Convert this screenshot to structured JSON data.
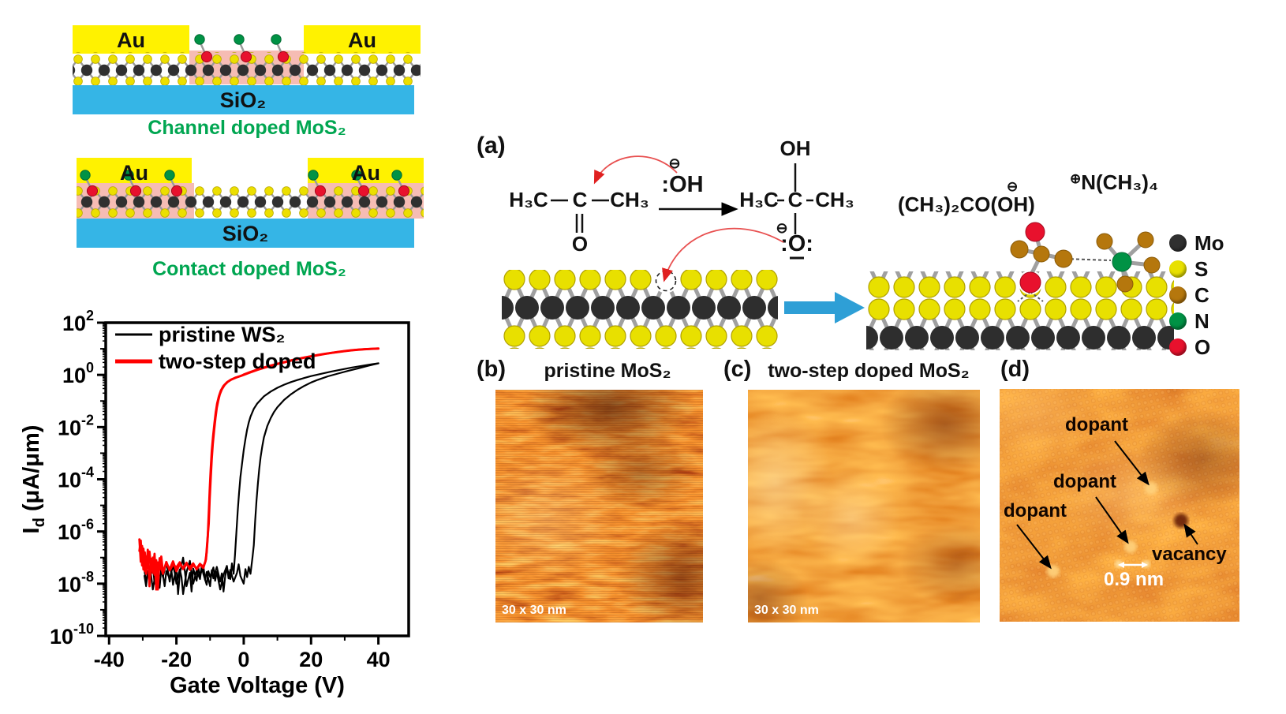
{
  "colors": {
    "au": "#fff200",
    "sio2": "#35b5e6",
    "doped_region": "#f6bcb4",
    "caption_green": "#00a651",
    "mo": "#303030",
    "s": "#e8e000",
    "c": "#b5770d",
    "n": "#009245",
    "o": "#e8112d",
    "arrow_blue": "#2e9fd6",
    "pristine_black": "#000000",
    "doped_red": "#ff0000"
  },
  "schematics": {
    "channel": {
      "electrode_label": "Au",
      "substrate_label": "SiO₂",
      "caption": "Channel doped MoS₂"
    },
    "contact": {
      "electrode_label": "Au",
      "substrate_label": "SiO₂",
      "caption": "Contact doped MoS₂"
    }
  },
  "chart_data": {
    "type": "line",
    "title": "",
    "xlabel": "Gate Voltage (V)",
    "ylabel": "I_d (μA/μm)",
    "ylabel_parts": {
      "pre": "I",
      "sub": "d",
      "post": " (μA/μm)"
    },
    "x_range": [
      -41,
      49
    ],
    "x_ticks": [
      -40,
      -20,
      0,
      20,
      40
    ],
    "x_minor_ticks": [
      -30,
      -10,
      10,
      30
    ],
    "y_scale": "log",
    "y_range_exp": [
      -10,
      2
    ],
    "y_tick_exps": [
      2,
      0,
      -2,
      -4,
      -6,
      -8,
      -10
    ],
    "grid": false,
    "legend_position": "top-left",
    "legend": [
      {
        "label": "pristine WS₂",
        "color": "#000000",
        "line_width": 3
      },
      {
        "label": "two-step doped",
        "color": "#ff0000",
        "line_width": 5
      }
    ],
    "series": [
      {
        "name": "pristine WS₂ sweep 1",
        "color": "#000000",
        "width": 2.2,
        "points": [
          [
            -29.5,
            2e-08
          ],
          [
            -29,
            8e-09
          ],
          [
            -28.5,
            3e-08
          ],
          [
            -28,
            1.4e-08
          ],
          [
            -27,
            5.5e-08
          ],
          [
            -26.5,
            1e-08
          ],
          [
            -26,
            3.2e-08
          ],
          [
            -25,
            7e-09
          ],
          [
            -24.5,
            4e-08
          ],
          [
            -24,
            1.8e-08
          ],
          [
            -23,
            6.5e-08
          ],
          [
            -22,
            1.2e-08
          ],
          [
            -21.5,
            3.4e-08
          ],
          [
            -21,
            9e-09
          ],
          [
            -20,
            4.5e-08
          ],
          [
            -19.5,
            4e-09
          ],
          [
            -19,
            2.4e-08
          ],
          [
            -18,
            1e-07
          ],
          [
            -17.5,
            3e-08
          ],
          [
            -17,
            8e-09
          ],
          [
            -16,
            2.6e-08
          ],
          [
            -15.5,
            5e-09
          ],
          [
            -15,
            3.8e-08
          ],
          [
            -14,
            1.3e-08
          ],
          [
            -13.5,
            4.2e-08
          ],
          [
            -13,
            2e-08
          ],
          [
            -12,
            5e-08
          ],
          [
            -11.5,
            1.4e-08
          ],
          [
            -11,
            2.8e-08
          ],
          [
            -10,
            8e-09
          ],
          [
            -9.5,
            3.3e-08
          ],
          [
            -9,
            1.6e-08
          ],
          [
            -8,
            4.4e-08
          ],
          [
            -7,
            1.2e-08
          ],
          [
            -6.5,
            2.5e-08
          ],
          [
            -6,
            5e-09
          ],
          [
            -5.5,
            2e-08
          ],
          [
            -5,
            4e-08
          ],
          [
            -4,
            1.5e-08
          ],
          [
            -3.5,
            6e-08
          ],
          [
            -3,
            2.4e-08
          ],
          [
            -2.6,
            1.2e-07
          ],
          [
            -2.2,
            8e-07
          ],
          [
            -1.8,
            6e-06
          ],
          [
            -1.4,
            3e-05
          ],
          [
            -1,
            0.00012
          ],
          [
            -0.5,
            0.0004
          ],
          [
            0,
            0.0013
          ],
          [
            0.5,
            0.0035
          ],
          [
            1,
            0.008
          ],
          [
            1.5,
            0.015
          ],
          [
            2,
            0.025
          ],
          [
            3,
            0.05
          ],
          [
            4,
            0.08
          ],
          [
            5,
            0.11
          ],
          [
            6,
            0.15
          ],
          [
            8,
            0.23
          ],
          [
            10,
            0.32
          ],
          [
            12,
            0.42
          ],
          [
            14,
            0.53
          ],
          [
            16,
            0.64
          ],
          [
            18,
            0.76
          ],
          [
            20,
            0.9
          ],
          [
            23,
            1.1
          ],
          [
            26,
            1.35
          ],
          [
            29,
            1.6
          ],
          [
            32,
            1.9
          ],
          [
            35,
            2.2
          ],
          [
            38,
            2.55
          ],
          [
            40,
            2.8
          ]
        ]
      },
      {
        "name": "pristine WS₂ sweep 2",
        "color": "#000000",
        "width": 2.2,
        "points": [
          [
            -29.5,
            3.2e-08
          ],
          [
            -29,
            1.2e-08
          ],
          [
            -28,
            4.5e-08
          ],
          [
            -27.5,
            2e-08
          ],
          [
            -27,
            6e-09
          ],
          [
            -26,
            3.6e-08
          ],
          [
            -25.5,
            1.4e-08
          ],
          [
            -25,
            5.5e-08
          ],
          [
            -24,
            2.2e-08
          ],
          [
            -23.5,
            8e-09
          ],
          [
            -23,
            3e-08
          ],
          [
            -22,
            1.6e-08
          ],
          [
            -21,
            5e-08
          ],
          [
            -20.5,
            2.6e-08
          ],
          [
            -20,
            1e-08
          ],
          [
            -19,
            3.5e-08
          ],
          [
            -18.5,
            1.8e-08
          ],
          [
            -18,
            4e-09
          ],
          [
            -17,
            2.8e-08
          ],
          [
            -16,
            7.5e-08
          ],
          [
            -15.5,
            2.2e-08
          ],
          [
            -15,
            1e-08
          ],
          [
            -14,
            3.2e-08
          ],
          [
            -13,
            1.5e-08
          ],
          [
            -12.5,
            4.6e-08
          ],
          [
            -12,
            2.4e-08
          ],
          [
            -11,
            9e-09
          ],
          [
            -10.5,
            3e-08
          ],
          [
            -10,
            1.8e-08
          ],
          [
            -9,
            4.2e-08
          ],
          [
            -8.5,
            1.3e-08
          ],
          [
            -8,
            2.8e-08
          ],
          [
            -7,
            6e-09
          ],
          [
            -6,
            2.2e-08
          ],
          [
            -5,
            4.8e-08
          ],
          [
            -4.5,
            1.6e-08
          ],
          [
            -4,
            3.4e-08
          ],
          [
            -3,
            1.2e-08
          ],
          [
            -2,
            2.6e-08
          ],
          [
            -1.5,
            5.5e-08
          ],
          [
            -1,
            2e-08
          ],
          [
            0,
            1e-08
          ],
          [
            0.5,
            3.6e-08
          ],
          [
            1,
            1.8e-08
          ],
          [
            1.5,
            4.4e-08
          ],
          [
            2,
            2.4e-08
          ],
          [
            2.6,
            1e-07
          ],
          [
            3,
            3e-07
          ],
          [
            3.4,
            2.5e-06
          ],
          [
            3.8,
            1.5e-05
          ],
          [
            4.2,
            7e-05
          ],
          [
            4.6,
            0.00025
          ],
          [
            5,
            0.0007
          ],
          [
            5.5,
            0.0018
          ],
          [
            6,
            0.004
          ],
          [
            7,
            0.011
          ],
          [
            8,
            0.022
          ],
          [
            9,
            0.038
          ],
          [
            10,
            0.058
          ],
          [
            12,
            0.11
          ],
          [
            14,
            0.18
          ],
          [
            16,
            0.27
          ],
          [
            18,
            0.38
          ],
          [
            20,
            0.51
          ],
          [
            22,
            0.65
          ],
          [
            25,
            0.88
          ],
          [
            28,
            1.12
          ],
          [
            31,
            1.42
          ],
          [
            34,
            1.78
          ],
          [
            37,
            2.25
          ],
          [
            40,
            2.75
          ]
        ]
      },
      {
        "name": "two-step doped sweep 1",
        "color": "#ff0000",
        "width": 2.8,
        "points": [
          [
            -31,
            5e-07
          ],
          [
            -30.6,
            7e-08
          ],
          [
            -30.2,
            2.8e-07
          ],
          [
            -29.8,
            3.5e-08
          ],
          [
            -29.4,
            1.6e-07
          ],
          [
            -29,
            2.4e-08
          ],
          [
            -28.5,
            2e-07
          ],
          [
            -28,
            8e-09
          ],
          [
            -27.5,
            9e-08
          ],
          [
            -27,
            2.6e-08
          ],
          [
            -26.5,
            1.4e-07
          ],
          [
            -26,
            6e-09
          ],
          [
            -25.5,
            6.5e-08
          ],
          [
            -25,
            3.4e-08
          ],
          [
            -24.5,
            1.1e-07
          ],
          [
            -24,
            2.8e-08
          ],
          [
            -23,
            6e-08
          ],
          [
            -22,
            3.6e-08
          ],
          [
            -21,
            7.2e-08
          ],
          [
            -20,
            3e-08
          ],
          [
            -19,
            5.6e-08
          ],
          [
            -18,
            4e-08
          ],
          [
            -17,
            6.4e-08
          ],
          [
            -16,
            3.4e-08
          ],
          [
            -15,
            5.2e-08
          ],
          [
            -14,
            3.8e-08
          ],
          [
            -13,
            5.8e-08
          ],
          [
            -12,
            4.4e-08
          ],
          [
            -11.4,
            7e-08
          ],
          [
            -11,
            1.6e-07
          ],
          [
            -10.7,
            6e-07
          ],
          [
            -10.4,
            5e-06
          ],
          [
            -10.1,
            4e-05
          ],
          [
            -9.8,
            0.00025
          ],
          [
            -9.5,
            0.0012
          ],
          [
            -9.1,
            0.0045
          ],
          [
            -8.7,
            0.014
          ],
          [
            -8.3,
            0.038
          ],
          [
            -7.9,
            0.08
          ],
          [
            -7.4,
            0.15
          ],
          [
            -6.8,
            0.25
          ],
          [
            -6,
            0.38
          ],
          [
            -5,
            0.52
          ],
          [
            -4,
            0.63
          ],
          [
            -2.5,
            0.78
          ],
          [
            -1,
            0.9
          ],
          [
            0,
            1
          ],
          [
            2,
            1.25
          ],
          [
            4,
            1.55
          ],
          [
            6,
            1.85
          ],
          [
            8,
            2.2
          ],
          [
            10,
            2.6
          ],
          [
            12,
            3
          ],
          [
            14,
            3.5
          ],
          [
            16,
            4
          ],
          [
            18,
            4.55
          ],
          [
            20,
            5.1
          ],
          [
            22,
            5.7
          ],
          [
            24,
            6.3
          ],
          [
            26,
            6.9
          ],
          [
            28,
            7.5
          ],
          [
            30,
            8.1
          ],
          [
            32,
            8.7
          ],
          [
            34,
            9.2
          ],
          [
            36,
            9.6
          ],
          [
            38,
            9.9
          ],
          [
            40,
            10.1
          ]
        ]
      },
      {
        "name": "two-step doped sweep 2",
        "color": "#ff0000",
        "width": 2.8,
        "points": [
          [
            -31,
            1.8e-07
          ],
          [
            -30.6,
            4.5e-07
          ],
          [
            -30.2,
            5e-08
          ],
          [
            -29.8,
            2.2e-07
          ],
          [
            -29.4,
            3e-08
          ],
          [
            -29,
            1.1e-07
          ],
          [
            -28.5,
            4.5e-08
          ],
          [
            -28,
            1.7e-07
          ],
          [
            -27.5,
            3.8e-08
          ],
          [
            -27,
            1e-07
          ],
          [
            -26.5,
            2.2e-08
          ],
          [
            -26,
            8e-08
          ],
          [
            -25.5,
            6e-09
          ],
          [
            -25,
            9.5e-08
          ],
          [
            -24.5,
            4.2e-08
          ],
          [
            -24,
            2.4e-08
          ],
          [
            -23,
            6.8e-08
          ],
          [
            -22,
            3.2e-08
          ],
          [
            -21,
            5.4e-08
          ],
          [
            -20,
            4.2e-08
          ],
          [
            -19,
            6.6e-08
          ],
          [
            -18,
            3.6e-08
          ],
          [
            -17,
            5.6e-08
          ],
          [
            -16,
            4.3e-08
          ],
          [
            -15,
            6e-08
          ],
          [
            -14,
            3.5e-08
          ],
          [
            -13,
            5.4e-08
          ],
          [
            -12,
            4e-08
          ],
          [
            -11.2,
            8.5e-08
          ],
          [
            -10.9,
            3e-07
          ],
          [
            -10.4,
            2e-06
          ],
          [
            -10.1,
            1.8e-05
          ],
          [
            -9.8,
            0.00011
          ],
          [
            -9.5,
            0.0006
          ],
          [
            -9.2,
            0.0022
          ],
          [
            -8.8,
            0.0075
          ],
          [
            -8.4,
            0.022
          ],
          [
            -8,
            0.055
          ],
          [
            -7.6,
            0.1
          ],
          [
            -7.1,
            0.18
          ],
          [
            -6.5,
            0.28
          ],
          [
            -5.7,
            0.41
          ],
          [
            -4.7,
            0.55
          ],
          [
            -3.7,
            0.66
          ],
          [
            -2.2,
            0.8
          ],
          [
            -0.7,
            0.93
          ],
          [
            0,
            1.03
          ],
          [
            2,
            1.3
          ],
          [
            4,
            1.6
          ],
          [
            6,
            1.9
          ],
          [
            8,
            2.27
          ],
          [
            10,
            2.67
          ],
          [
            12,
            3.08
          ],
          [
            14,
            3.58
          ],
          [
            16,
            4.1
          ],
          [
            18,
            4.65
          ],
          [
            20,
            5.2
          ],
          [
            22,
            5.82
          ],
          [
            24,
            6.42
          ],
          [
            26,
            7.02
          ],
          [
            28,
            7.62
          ],
          [
            30,
            8.2
          ],
          [
            32,
            8.8
          ],
          [
            34,
            9.3
          ],
          [
            36,
            9.7
          ],
          [
            38,
            10
          ],
          [
            40,
            10.25
          ]
        ]
      }
    ]
  },
  "panel_a": {
    "label": "(a)",
    "reaction": {
      "reactant_left": "H₃C",
      "reactant_c": "C",
      "reactant_right": "CH₃",
      "carbonyl_o": "O",
      "hydroxide_charge": "⊖",
      "hydroxide": ":OH",
      "product_oh": "OH",
      "product_left": "H₃C",
      "product_c": "C",
      "product_right": "CH₃",
      "alkoxide_charge": "⊖",
      "alkoxide_o": ":O:"
    },
    "adduct_charge": "⊖",
    "adduct_label": "(CH₃)₂CO(OH)",
    "cation_charge": "⊕",
    "cation_label": "N(CH₃)₄",
    "atom_legend": [
      {
        "label": "Mo",
        "color": "#303030"
      },
      {
        "label": "S",
        "color": "#e8e000"
      },
      {
        "label": "C",
        "color": "#b5770d"
      },
      {
        "label": "N",
        "color": "#009245"
      },
      {
        "label": "O",
        "color": "#e8112d"
      }
    ]
  },
  "panel_b": {
    "label": "(b)",
    "title": "pristine MoS₂",
    "scale_label": "30 x 30 nm"
  },
  "panel_c": {
    "label": "(c)",
    "title": "two-step doped MoS₂",
    "scale_label": "30 x 30 nm"
  },
  "panel_d": {
    "label": "(d)",
    "dopant_label": "dopant",
    "vacancy_label": "vacancy",
    "scalebar_label": "0.9 nm"
  }
}
